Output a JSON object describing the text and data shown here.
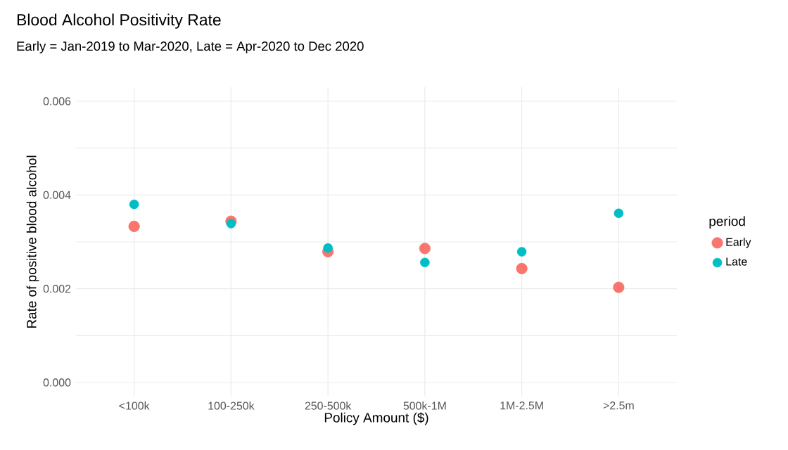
{
  "chart_data": {
    "type": "scatter",
    "title": "Blood Alcohol Positivity Rate",
    "subtitle": "Early = Jan-2019 to Mar-2020, Late = Apr-2020 to Dec 2020",
    "xlabel": "Policy Amount ($)",
    "ylabel": "Rate of positive blood alcohol",
    "legend_title": "period",
    "categories": [
      "<100k",
      "100-250k",
      "250-500k",
      "500k-1M",
      "1M-2.5M",
      ">2.5m"
    ],
    "series": [
      {
        "name": "Early",
        "color": "#f8766d",
        "values": [
          0.00333,
          0.00344,
          0.00279,
          0.00286,
          0.00243,
          0.00203
        ]
      },
      {
        "name": "Late",
        "color": "#00bfc4",
        "values": [
          0.0038,
          0.00339,
          0.00287,
          0.00256,
          0.00279,
          0.00361
        ]
      }
    ],
    "ylim": [
      -0.0003,
      0.0063
    ],
    "yticks": [
      {
        "value": 0,
        "label": "0.000"
      },
      {
        "value": 0.001,
        "label": null
      },
      {
        "value": 0.002,
        "label": "0.002"
      },
      {
        "value": 0.003,
        "label": null
      },
      {
        "value": 0.004,
        "label": "0.004"
      },
      {
        "value": 0.005,
        "label": null
      },
      {
        "value": 0.006,
        "label": "0.006"
      }
    ],
    "grid": true,
    "legend": "right",
    "marker": "circle"
  }
}
